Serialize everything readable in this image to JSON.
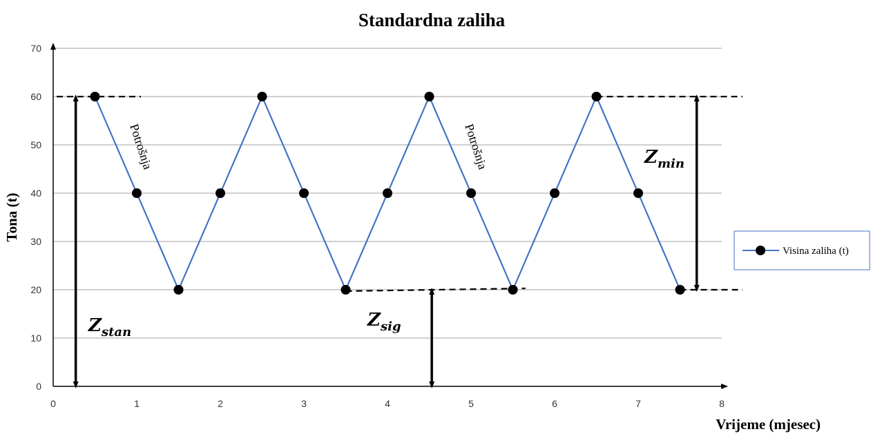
{
  "chart_data": {
    "type": "line",
    "title": "Standardna zaliha",
    "xlabel": "Vrijeme (mjesec)",
    "ylabel": "Tona (t)",
    "xlim": [
      0,
      8
    ],
    "ylim": [
      0,
      70
    ],
    "x_ticks": [
      0,
      1,
      2,
      3,
      4,
      5,
      6,
      7,
      8
    ],
    "y_ticks": [
      0,
      10,
      20,
      30,
      40,
      50,
      60,
      70
    ],
    "grid": "horizontal",
    "legend_position": "right",
    "series": [
      {
        "name": "Visina zaliha (t)",
        "color": "#4472C4",
        "marker_color": "#000000",
        "x": [
          0.5,
          1,
          1.5,
          2,
          2.5,
          3,
          3.5,
          4,
          4.5,
          5,
          5.5,
          6,
          6.5,
          7,
          7.5
        ],
        "values": [
          60,
          40,
          20,
          40,
          60,
          40,
          20,
          40,
          60,
          40,
          20,
          40,
          60,
          40,
          20
        ]
      }
    ],
    "annotations": {
      "consumption_label": "Potrošnja",
      "z_stan": {
        "main": "Z",
        "sub": "stan",
        "from": 0,
        "to": 60,
        "at_x": 0.27
      },
      "z_sig": {
        "main": "Z",
        "sub": "sig",
        "from": 0,
        "to": 20,
        "at_x": 4.53
      },
      "z_min": {
        "main": "Z",
        "sub": "min",
        "from": 20,
        "to": 60,
        "at_x": 7.7
      },
      "dashed_levels": [
        60,
        20
      ]
    }
  }
}
